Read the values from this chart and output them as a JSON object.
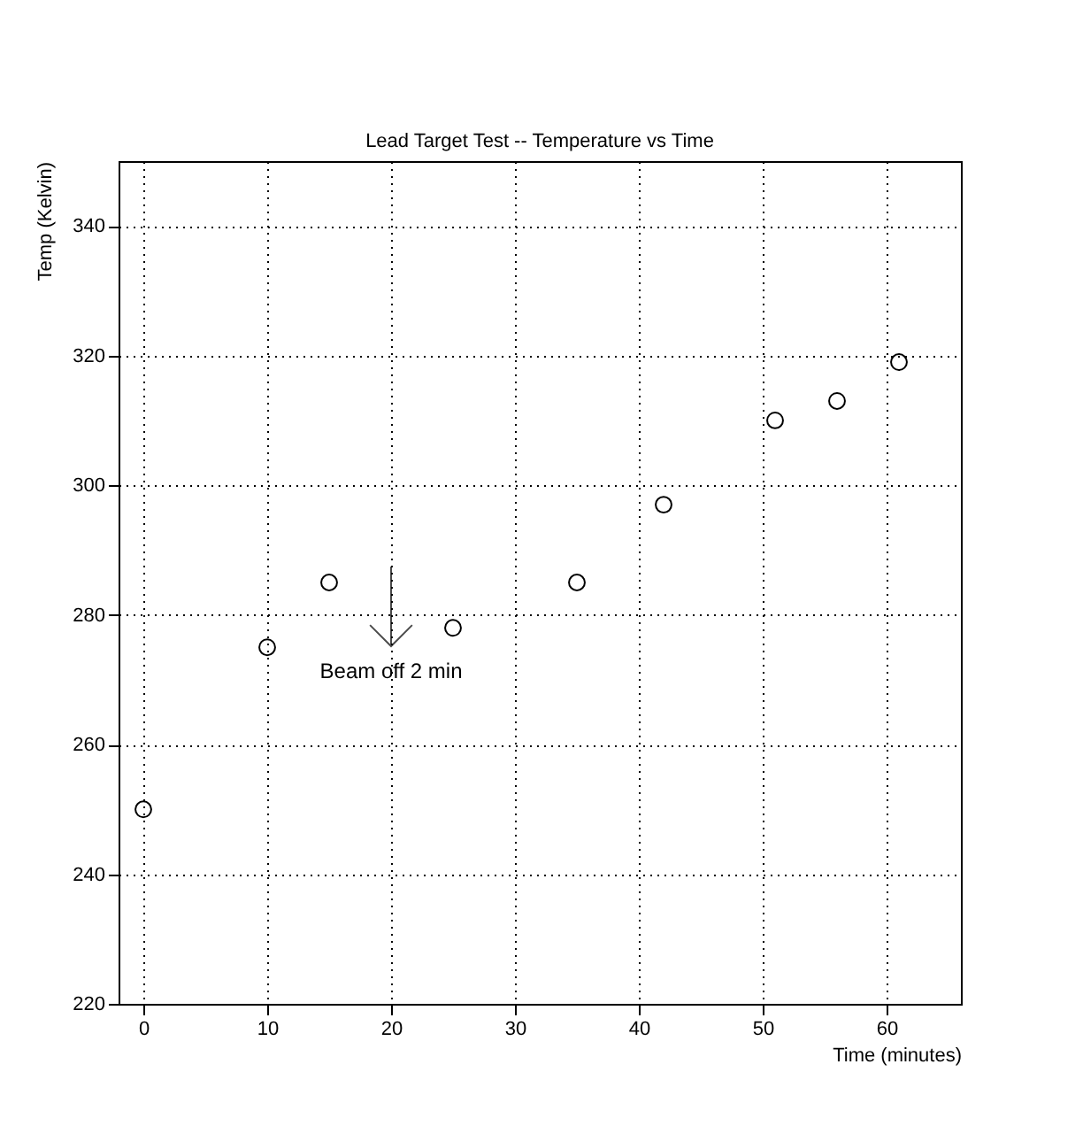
{
  "chart_data": {
    "type": "scatter",
    "title": "Lead Target Test -- Temperature vs Time",
    "xlabel": "Time (minutes)",
    "ylabel": "Temp (Kelvin)",
    "x": [
      0,
      10,
      15,
      25,
      35,
      42,
      51,
      56,
      61
    ],
    "values": [
      250,
      275,
      285,
      278,
      285,
      297,
      310,
      313,
      319
    ],
    "color": "#000000",
    "marker": "circle",
    "xlim": [
      -2,
      66
    ],
    "ylim": [
      220,
      350
    ],
    "xticks": [
      0,
      10,
      20,
      30,
      40,
      50,
      60
    ],
    "yticks": [
      220,
      240,
      260,
      280,
      300,
      320,
      340
    ],
    "grid": true,
    "annotations": [
      "Beam off 2 min"
    ]
  }
}
